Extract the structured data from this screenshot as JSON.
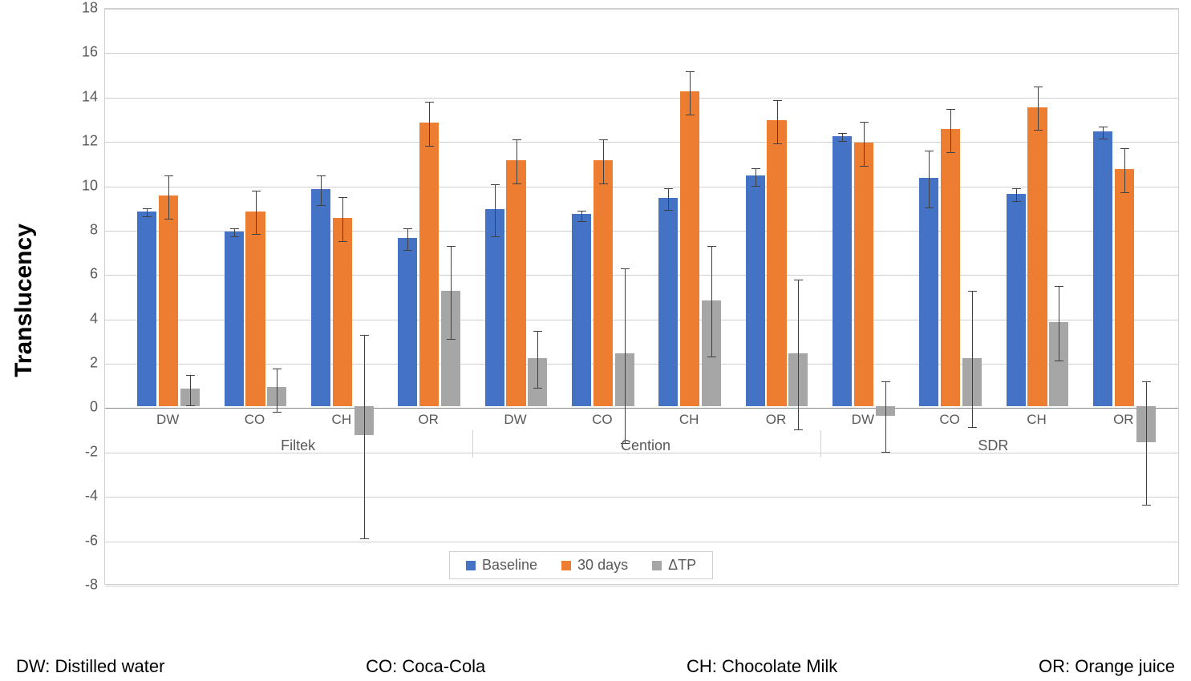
{
  "chart": {
    "type": "bar",
    "yaxis_title": "Translucency",
    "ylim": [
      -8,
      18
    ],
    "ytick_step": 2,
    "yticks": [
      -8,
      -6,
      -4,
      -2,
      0,
      2,
      4,
      6,
      8,
      10,
      12,
      14,
      16,
      18
    ],
    "grid_color": "#d0d0d0",
    "background_color": "#ffffff",
    "axis_label_color": "#595959",
    "axis_label_fontsize": 18,
    "yaxis_title_fontsize": 30,
    "groups": [
      "Filtek",
      "Cention",
      "SDR"
    ],
    "subgroups": [
      "DW",
      "CO",
      "CH",
      "OR"
    ],
    "series": [
      {
        "name": "Baseline",
        "color": "#4472c4"
      },
      {
        "name": "30 days",
        "color": "#ed7d31"
      },
      {
        "name": "ΔTP",
        "color": "#a6a6a6"
      }
    ],
    "bar_width": 0.72,
    "data": {
      "Filtek": {
        "DW": {
          "Baseline": {
            "v": 8.8,
            "elo": 0.2,
            "ehi": 0.2
          },
          "30 days": {
            "v": 9.5,
            "elo": 1.0,
            "ehi": 1.0
          },
          "ΔTP": {
            "v": 0.8,
            "elo": 0.7,
            "ehi": 0.7
          }
        },
        "CO": {
          "Baseline": {
            "v": 7.9,
            "elo": 0.2,
            "ehi": 0.2
          },
          "30 days": {
            "v": 8.8,
            "elo": 1.0,
            "ehi": 1.0
          },
          "ΔTP": {
            "v": 0.9,
            "elo": 1.1,
            "ehi": 0.9
          }
        },
        "CH": {
          "Baseline": {
            "v": 9.8,
            "elo": 0.7,
            "ehi": 0.7
          },
          "30 days": {
            "v": 8.5,
            "elo": 1.0,
            "ehi": 1.0
          },
          "ΔTP": {
            "v": -1.3,
            "elo": 4.6,
            "ehi": 4.6
          }
        },
        "OR": {
          "Baseline": {
            "v": 7.6,
            "elo": 0.5,
            "ehi": 0.5
          },
          "30 days": {
            "v": 12.8,
            "elo": 1.0,
            "ehi": 1.0
          },
          "ΔTP": {
            "v": 5.2,
            "elo": 2.1,
            "ehi": 2.1
          }
        }
      },
      "Cention": {
        "DW": {
          "Baseline": {
            "v": 8.9,
            "elo": 1.2,
            "ehi": 1.2
          },
          "30 days": {
            "v": 11.1,
            "elo": 1.0,
            "ehi": 1.0
          },
          "ΔTP": {
            "v": 2.2,
            "elo": 1.3,
            "ehi": 1.3
          }
        },
        "CO": {
          "Baseline": {
            "v": 8.7,
            "elo": 0.3,
            "ehi": 0.2
          },
          "30 days": {
            "v": 11.1,
            "elo": 1.0,
            "ehi": 1.0
          },
          "ΔTP": {
            "v": 2.4,
            "elo": 4.0,
            "ehi": 3.9
          }
        },
        "CH": {
          "Baseline": {
            "v": 9.4,
            "elo": 0.5,
            "ehi": 0.5
          },
          "30 days": {
            "v": 14.2,
            "elo": 1.0,
            "ehi": 1.0
          },
          "ΔTP": {
            "v": 4.8,
            "elo": 2.5,
            "ehi": 2.5
          }
        },
        "OR": {
          "Baseline": {
            "v": 10.4,
            "elo": 0.4,
            "ehi": 0.4
          },
          "30 days": {
            "v": 12.9,
            "elo": 1.0,
            "ehi": 1.0
          },
          "ΔTP": {
            "v": 2.4,
            "elo": 3.4,
            "ehi": 3.4
          }
        }
      },
      "SDR": {
        "DW": {
          "Baseline": {
            "v": 12.2,
            "elo": 0.2,
            "ehi": 0.2
          },
          "30 days": {
            "v": 11.9,
            "elo": 1.0,
            "ehi": 1.0
          },
          "ΔTP": {
            "v": -0.4,
            "elo": 1.6,
            "ehi": 1.6
          }
        },
        "CO": {
          "Baseline": {
            "v": 10.3,
            "elo": 1.3,
            "ehi": 1.3
          },
          "30 days": {
            "v": 12.5,
            "elo": 1.0,
            "ehi": 1.0
          },
          "ΔTP": {
            "v": 2.2,
            "elo": 3.1,
            "ehi": 3.1
          }
        },
        "CH": {
          "Baseline": {
            "v": 9.6,
            "elo": 0.3,
            "ehi": 0.3
          },
          "30 days": {
            "v": 13.5,
            "elo": 1.0,
            "ehi": 1.0
          },
          "ΔTP": {
            "v": 3.8,
            "elo": 1.7,
            "ehi": 1.7
          }
        },
        "OR": {
          "Baseline": {
            "v": 12.4,
            "elo": 0.3,
            "ehi": 0.3
          },
          "30 days": {
            "v": 10.7,
            "elo": 1.0,
            "ehi": 1.0
          },
          "ΔTP": {
            "v": -1.6,
            "elo": 2.8,
            "ehi": 2.8
          }
        }
      }
    },
    "legend": {
      "items": [
        "Baseline",
        "30 days",
        "ΔTP"
      ],
      "position": "bottom-center"
    },
    "footer_keys": [
      "DW: Distilled water",
      "CO: Coca-Cola",
      "CH: Chocolate Milk",
      "OR: Orange juice"
    ]
  }
}
